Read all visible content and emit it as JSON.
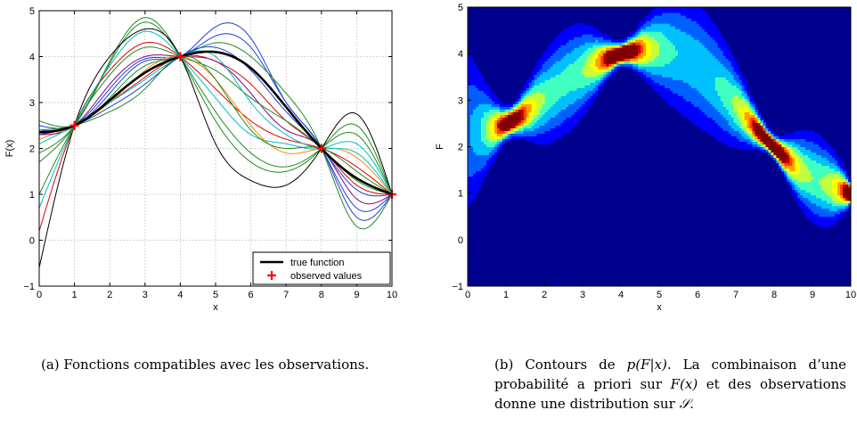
{
  "chart_data": [
    {
      "type": "line",
      "xlabel": "x",
      "ylabel": "F(x)",
      "xlim": [
        0,
        10
      ],
      "ylim": [
        -1,
        5
      ],
      "xticks": [
        "0",
        "1",
        "2",
        "3",
        "4",
        "5",
        "6",
        "7",
        "8",
        "9",
        "10"
      ],
      "yticks": [
        "−1",
        "0",
        "1",
        "2",
        "3",
        "4",
        "5"
      ],
      "grid": true,
      "legend_position": "bottom-right",
      "legend": [
        "true function",
        "observed values"
      ],
      "observed": {
        "x": [
          1,
          4,
          8,
          10
        ],
        "y": [
          2.5,
          4,
          2,
          1
        ]
      },
      "true_function": {
        "color": "#000000",
        "x": [
          0,
          1,
          2,
          3,
          4,
          5,
          6,
          7,
          8,
          9,
          10
        ],
        "y": [
          2.35,
          2.5,
          3.05,
          3.65,
          4.0,
          4.1,
          3.75,
          2.9,
          2.0,
          1.35,
          1.0
        ]
      },
      "samples": [
        {
          "color": "#1f3fd6",
          "y": [
            2.5,
            2.5,
            3.2,
            3.9,
            4.0,
            4.65,
            4.4,
            3.0,
            2.0,
            0.5,
            1.0
          ]
        },
        {
          "color": "#1f3fd6",
          "y": [
            2.4,
            2.5,
            3.3,
            3.95,
            4.0,
            4.45,
            4.2,
            3.0,
            2.0,
            0.7,
            1.0
          ]
        },
        {
          "color": "#228b22",
          "y": [
            1.7,
            2.5,
            3.9,
            4.85,
            4.0,
            2.6,
            1.7,
            1.5,
            2.0,
            2.5,
            1.0
          ]
        },
        {
          "color": "#228b22",
          "y": [
            1.9,
            2.5,
            3.85,
            4.75,
            4.0,
            2.8,
            1.9,
            1.6,
            2.0,
            2.3,
            1.0
          ]
        },
        {
          "color": "#000000",
          "y": [
            -0.6,
            2.5,
            4.0,
            4.6,
            4.0,
            2.1,
            1.3,
            1.2,
            2.0,
            2.75,
            1.0
          ]
        },
        {
          "color": "#e00000",
          "y": [
            0.2,
            2.5,
            3.7,
            4.3,
            4.0,
            3.3,
            2.6,
            2.2,
            2.0,
            1.6,
            1.0
          ]
        },
        {
          "color": "#e00000",
          "y": [
            2.3,
            2.5,
            3.0,
            3.55,
            4.0,
            3.9,
            3.4,
            2.6,
            2.0,
            1.2,
            1.0
          ]
        },
        {
          "color": "#00bfbf",
          "y": [
            0.7,
            2.5,
            3.8,
            4.55,
            4.0,
            3.1,
            2.3,
            2.1,
            2.0,
            2.1,
            1.0
          ]
        },
        {
          "color": "#ff8c00",
          "y": [
            2.2,
            2.5,
            3.0,
            3.7,
            4.0,
            3.5,
            2.5,
            1.9,
            2.0,
            1.8,
            1.0
          ]
        },
        {
          "color": "#8b008b",
          "y": [
            2.3,
            2.5,
            3.4,
            4.0,
            4.0,
            3.9,
            3.2,
            2.4,
            2.0,
            0.9,
            1.0
          ]
        },
        {
          "color": "#228b22",
          "y": [
            1.0,
            2.5,
            3.6,
            4.2,
            4.0,
            3.7,
            3.1,
            2.6,
            2.0,
            1.3,
            1.0
          ]
        },
        {
          "color": "#228b22",
          "y": [
            2.6,
            2.5,
            3.1,
            3.8,
            4.0,
            4.3,
            4.0,
            3.2,
            2.0,
            0.3,
            1.0
          ]
        },
        {
          "color": "#1f3fd6",
          "y": [
            2.3,
            2.5,
            2.9,
            3.4,
            4.0,
            4.2,
            3.7,
            2.8,
            2.0,
            1.1,
            1.0
          ]
        },
        {
          "color": "#00bfbf",
          "y": [
            2.1,
            2.5,
            3.0,
            3.5,
            4.0,
            4.0,
            3.0,
            2.3,
            2.0,
            1.9,
            1.0
          ]
        },
        {
          "color": "#228b22",
          "y": [
            2.4,
            2.5,
            2.8,
            3.3,
            4.0,
            3.5,
            2.4,
            2.0,
            2.0,
            1.5,
            1.0
          ]
        }
      ]
    },
    {
      "type": "heatmap",
      "xlabel": "x",
      "ylabel": "F",
      "xlim": [
        0,
        10
      ],
      "ylim": [
        -1,
        5
      ],
      "xticks": [
        "0",
        "1",
        "2",
        "3",
        "4",
        "5",
        "6",
        "7",
        "8",
        "9",
        "10"
      ],
      "yticks": [
        "−1",
        "0",
        "1",
        "2",
        "3",
        "4",
        "5"
      ],
      "grid": false,
      "colormap": [
        "#00008f",
        "#0000ff",
        "#0060ff",
        "#00c0ff",
        "#40ffbf",
        "#bfff40",
        "#ffff00",
        "#ffa000",
        "#ff4000",
        "#c00000",
        "#800000"
      ],
      "mean": {
        "x": [
          0,
          1,
          2,
          3,
          4,
          5,
          6,
          7,
          8,
          9,
          10
        ],
        "y": [
          2.35,
          2.5,
          3.05,
          3.65,
          4.0,
          4.1,
          3.75,
          2.9,
          2.0,
          1.35,
          1.0
        ]
      },
      "spread": {
        "x": [
          0,
          1,
          2,
          3,
          4,
          5,
          6,
          7,
          8,
          9,
          10
        ],
        "sd": [
          1.15,
          0.18,
          0.55,
          0.55,
          0.12,
          0.55,
          0.8,
          0.5,
          0.12,
          0.55,
          0.1
        ]
      },
      "contour_levels": 10
    }
  ],
  "captions": {
    "a": "(a) Fonctions compatibles avec les observations.",
    "b_part1": "(b) Contours de ",
    "b_math": "p(F|x)",
    "b_part2": ". La combinaison d’une probabilité a priori sur ",
    "b_math2": "F(x)",
    "b_part3": " et des observations donne une distribution sur ",
    "b_math3": "𝒮",
    "b_part4": "."
  }
}
